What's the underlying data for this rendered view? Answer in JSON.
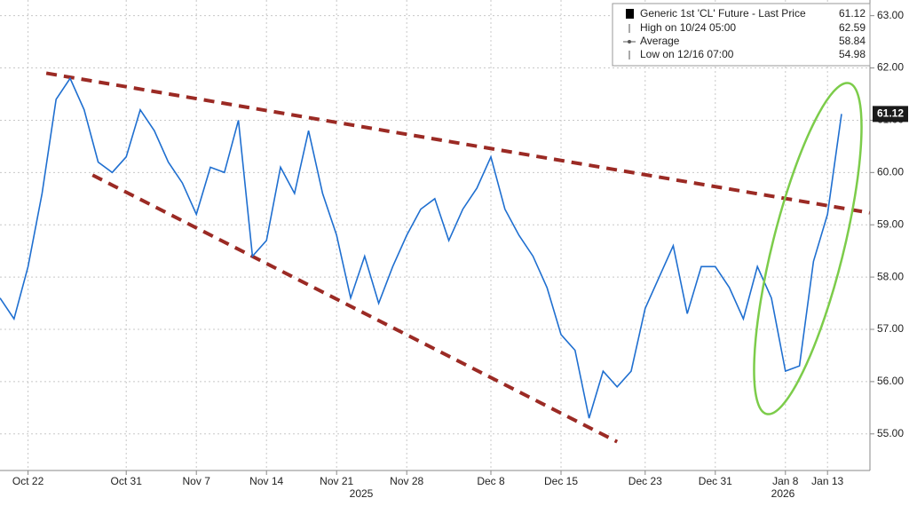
{
  "chart_data": {
    "type": "line",
    "legend": [
      {
        "name": "Generic 1st 'CL' Future - Last Price",
        "value": 61.12
      },
      {
        "name": "High on 10/24 05:00",
        "value": 62.59
      },
      {
        "name": "Average",
        "value": 58.84
      },
      {
        "name": "Low on 12/16 07:00",
        "value": 54.98
      }
    ],
    "categories": [
      null,
      null,
      "Oct 22",
      null,
      null,
      null,
      null,
      null,
      null,
      "Oct 31",
      null,
      null,
      null,
      null,
      "Nov 7",
      null,
      null,
      null,
      null,
      "Nov 14",
      null,
      null,
      null,
      null,
      "Nov 21",
      null,
      null,
      null,
      null,
      "Nov 28",
      null,
      null,
      null,
      null,
      null,
      "Dec 8",
      null,
      null,
      null,
      null,
      "Dec 15",
      null,
      null,
      null,
      null,
      null,
      "Dec 23",
      null,
      null,
      null,
      null,
      "Dec 31",
      null,
      null,
      null,
      null,
      "Jan 8",
      null,
      null,
      "Jan 13",
      null
    ],
    "series": [
      {
        "name": "Generic 1st 'CL' Future - Last Price",
        "color": "#1f6fd0",
        "values": [
          57.6,
          57.2,
          58.2,
          59.6,
          61.4,
          61.8,
          61.2,
          60.2,
          60.0,
          60.3,
          61.2,
          60.8,
          60.2,
          59.8,
          59.2,
          60.1,
          60.0,
          61.0,
          58.4,
          58.7,
          60.1,
          59.6,
          60.8,
          59.6,
          58.8,
          57.6,
          58.4,
          57.5,
          58.2,
          58.8,
          59.3,
          59.5,
          58.7,
          59.3,
          59.7,
          60.3,
          59.3,
          58.8,
          58.4,
          57.8,
          56.9,
          56.6,
          55.3,
          56.2,
          55.9,
          56.2,
          57.4,
          58.0,
          58.6,
          57.3,
          58.2,
          58.2,
          57.8,
          57.2,
          58.2,
          57.6,
          56.2,
          56.3,
          58.3,
          59.2,
          61.12
        ]
      }
    ],
    "trendlines": [
      {
        "color": "#9b2a24",
        "x": [
          3.3,
          62
        ],
        "y": [
          61.9,
          59.23
        ]
      },
      {
        "color": "#9b2a24",
        "x": [
          6.6,
          44
        ],
        "y": [
          59.95,
          54.85
        ]
      }
    ],
    "year_labels": [
      "2025",
      "2026"
    ],
    "ylim": [
      54.3,
      63.3
    ],
    "yticks": [
      {
        "value": 55,
        "label": "55.00"
      },
      {
        "value": 56,
        "label": "56.00"
      },
      {
        "value": 57,
        "label": "57.00"
      },
      {
        "value": 58,
        "label": "58.00"
      },
      {
        "value": 59,
        "label": "59.00"
      },
      {
        "value": 60,
        "label": "60.00"
      },
      {
        "value": 61,
        "label": "61.00"
      },
      {
        "value": 62,
        "label": "62.00"
      },
      {
        "value": 63,
        "label": "63.00"
      }
    ],
    "grid": true
  }
}
